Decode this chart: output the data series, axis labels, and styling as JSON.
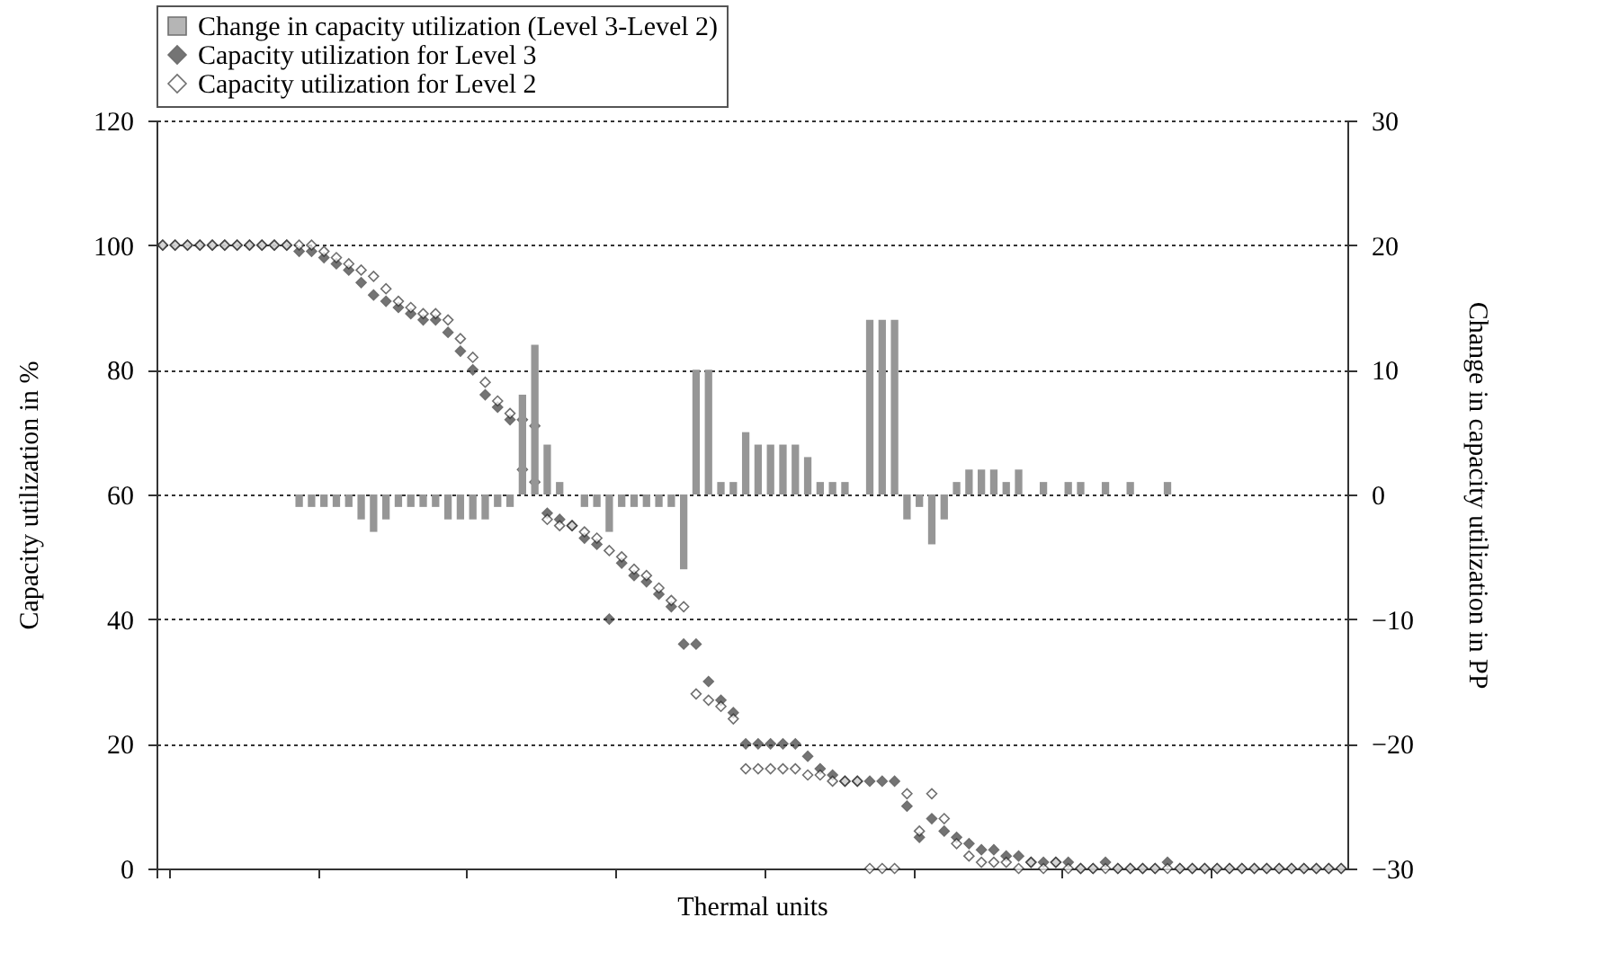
{
  "chart_data": {
    "type": "scatter",
    "xlabel": "Thermal units",
    "ylabel": "Capacity utilization in %",
    "y2label": "Change in capacity utilization in PP",
    "categories": [
      null,
      null,
      null,
      null,
      null,
      null,
      null,
      null,
      null,
      null,
      null,
      null,
      null,
      null,
      null,
      null,
      null,
      null,
      null,
      null,
      null,
      null,
      null,
      null,
      null,
      null,
      null,
      null,
      null,
      null,
      null,
      null,
      null,
      null,
      null,
      null,
      null,
      null,
      null,
      null,
      null,
      null,
      null,
      null,
      null,
      null,
      null,
      null,
      null,
      null,
      null,
      null,
      null,
      null,
      null,
      null,
      null,
      null,
      null,
      null,
      null,
      null,
      null,
      null,
      null,
      null,
      null,
      null,
      null,
      null,
      null,
      null,
      null,
      null,
      null,
      null,
      null,
      null,
      null,
      null,
      null,
      null,
      null,
      null,
      null,
      null,
      null,
      null,
      null,
      null,
      null,
      null,
      null,
      null,
      null,
      null
    ],
    "series": [
      {
        "name": "Change in capacity utilization (Level 3-Level 2)",
        "type": "bar",
        "axis": "y2",
        "color": "#969696",
        "marker": "square",
        "values": [
          0,
          0,
          0,
          0,
          0,
          0,
          0,
          0,
          0,
          0,
          0,
          -1,
          -1,
          -1,
          -1,
          -1,
          -2,
          -3,
          -2,
          -1,
          -1,
          -1,
          -1,
          -2,
          -2,
          -2,
          -2,
          -1,
          -1,
          8,
          12,
          4,
          1,
          0,
          -1,
          -1,
          -3,
          -1,
          -1,
          -1,
          -1,
          -1,
          -6,
          10,
          10,
          1,
          1,
          5,
          4,
          4,
          4,
          4,
          3,
          1,
          1,
          1,
          0,
          14,
          14,
          14,
          -2,
          -1,
          -4,
          -2,
          1,
          2,
          2,
          2,
          1,
          2,
          0,
          1,
          0,
          1,
          1,
          0,
          1,
          0,
          1,
          0,
          0,
          1,
          0,
          0,
          0,
          0,
          0,
          0,
          0,
          0,
          0,
          0,
          0,
          0,
          0,
          0
        ]
      },
      {
        "name": "Capacity utilization for Level 3",
        "color": "#3a3a3a",
        "marker": "diamond",
        "values": [
          100,
          100,
          100,
          100,
          100,
          100,
          100,
          100,
          100,
          100,
          100,
          99,
          99,
          98,
          97,
          96,
          94,
          92,
          91,
          90,
          89,
          88,
          88,
          86,
          83,
          80,
          76,
          74,
          72,
          72,
          71,
          57,
          56,
          55,
          53,
          52,
          40,
          49,
          47,
          46,
          44,
          42,
          36,
          36,
          30,
          27,
          25,
          20,
          20,
          20,
          20,
          20,
          18,
          16,
          15,
          14,
          14,
          14,
          14,
          14,
          10,
          5,
          8,
          6,
          5,
          4,
          3,
          3,
          2,
          2,
          1,
          1,
          1,
          1,
          0,
          0,
          1,
          0,
          0,
          0,
          0,
          1,
          0,
          0,
          0,
          0,
          0,
          0,
          0,
          0,
          0,
          0,
          0,
          0,
          0,
          0
        ]
      },
      {
        "name": "Capacity utilization for Level 2",
        "color": "#ffffff",
        "marker": "diamond",
        "values": [
          100,
          100,
          100,
          100,
          100,
          100,
          100,
          100,
          100,
          100,
          100,
          100,
          100,
          99,
          98,
          97,
          96,
          95,
          93,
          91,
          90,
          89,
          89,
          88,
          85,
          82,
          78,
          75,
          73,
          64,
          62,
          56,
          55,
          55,
          54,
          53,
          51,
          50,
          48,
          47,
          45,
          43,
          42,
          28,
          27,
          26,
          24,
          16,
          16,
          16,
          16,
          16,
          15,
          15,
          14,
          14,
          14,
          0,
          0,
          0,
          12,
          6,
          12,
          8,
          4,
          2,
          1,
          1,
          1,
          0,
          1,
          0,
          1,
          0,
          0,
          0,
          0,
          0,
          0,
          0,
          0,
          0,
          0,
          0,
          0,
          0,
          0,
          0,
          0,
          0,
          0,
          0,
          0,
          0,
          0,
          0
        ]
      }
    ],
    "ylim": [
      0,
      120
    ],
    "yticks": [
      0,
      20,
      40,
      60,
      80,
      100,
      120
    ],
    "y2lim": [
      -30,
      30
    ],
    "y2ticks": [
      -30,
      -20,
      -10,
      0,
      10,
      20,
      30
    ],
    "grid": "y",
    "legend": "top"
  }
}
